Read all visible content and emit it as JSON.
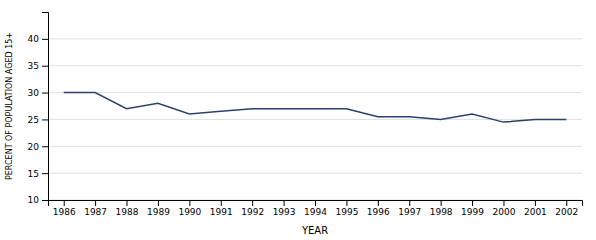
{
  "chart_data": {
    "type": "line",
    "x": [
      1986,
      1987,
      1988,
      1989,
      1990,
      1991,
      1992,
      1993,
      1994,
      1995,
      1996,
      1997,
      1998,
      1999,
      2000,
      2001,
      2002
    ],
    "values": [
      30.0,
      30.0,
      27.0,
      28.0,
      26.0,
      26.5,
      27.0,
      27.0,
      27.0,
      27.0,
      25.5,
      25.5,
      25.0,
      26.0,
      24.5,
      25.0,
      25.0
    ],
    "color": "#2e3f6e",
    "xlabel": "YEAR",
    "ylabel": "PERCENT OF POPULATION AGED 15+",
    "xlim": [
      1985.5,
      2002.5
    ],
    "xticks": [
      1986,
      1987,
      1988,
      1989,
      1990,
      1991,
      1992,
      1993,
      1994,
      1995,
      1996,
      1997,
      1998,
      1999,
      2000,
      2001,
      2002
    ],
    "ylim": [
      10,
      45
    ],
    "yticks": [
      10,
      15,
      20,
      25,
      30,
      35,
      40
    ],
    "grid": true
  }
}
